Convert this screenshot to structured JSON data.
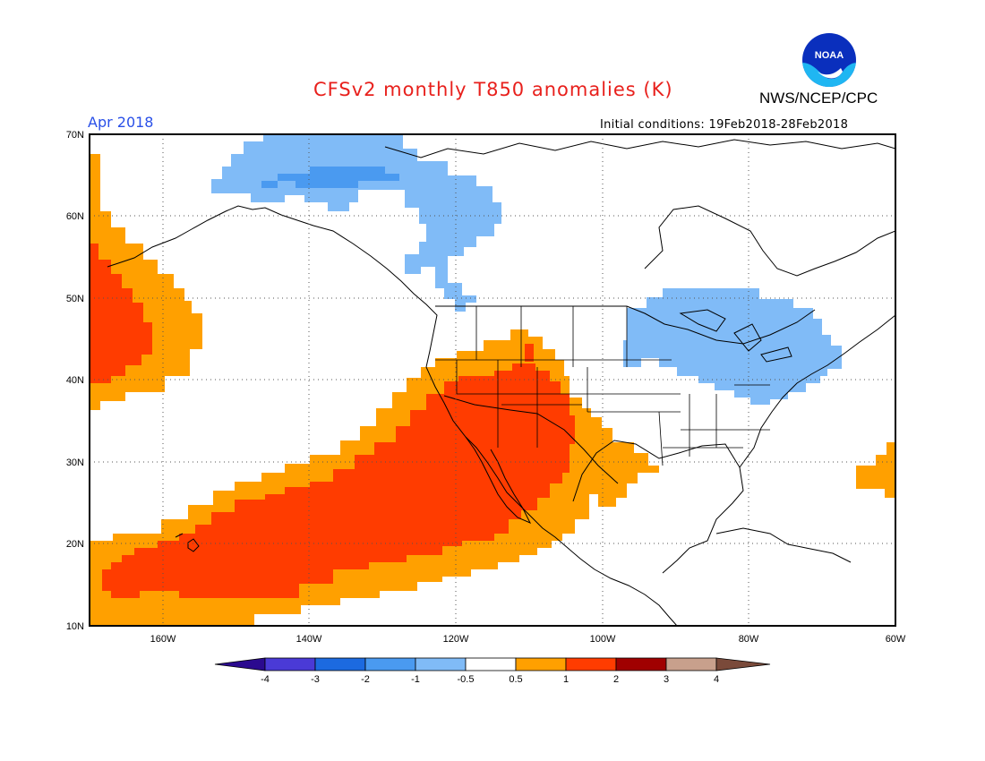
{
  "header": {
    "title": "CFSv2 monthly T850 anomalies (K)",
    "agency": "NWS/NCEP/CPC",
    "period": "Apr 2018",
    "initial_conditions": "Initial conditions: 19Feb2018-28Feb2018"
  },
  "logo": {
    "text": "NOAA",
    "icon": "noaa-logo"
  },
  "map": {
    "projection": "lat-lon",
    "lon_range": [
      -170,
      -60
    ],
    "lat_range": [
      10,
      70
    ],
    "lat_labels": [
      "70N",
      "60N",
      "50N",
      "40N",
      "30N",
      "20N",
      "10N"
    ],
    "lon_labels": [
      "160W",
      "140W",
      "120W",
      "100W",
      "80W",
      "60W"
    ],
    "grid": "dotted"
  },
  "colorbar": {
    "labels": [
      "-4",
      "-3",
      "-2",
      "-1",
      "-0.5",
      "0.5",
      "1",
      "2",
      "3",
      "4"
    ],
    "colors": [
      "#2b0a8f",
      "#4a3ad6",
      "#1c6ae0",
      "#4a9af0",
      "#80bbf7",
      "#ffffff",
      "#ffa000",
      "#ff3c00",
      "#a00000",
      "#c8a08c",
      "#7a4a3a"
    ]
  },
  "colors": {
    "orange": "#ffa000",
    "red": "#ff3c00",
    "light_blue": "#80bbf7",
    "blue": "#4a9af0"
  }
}
